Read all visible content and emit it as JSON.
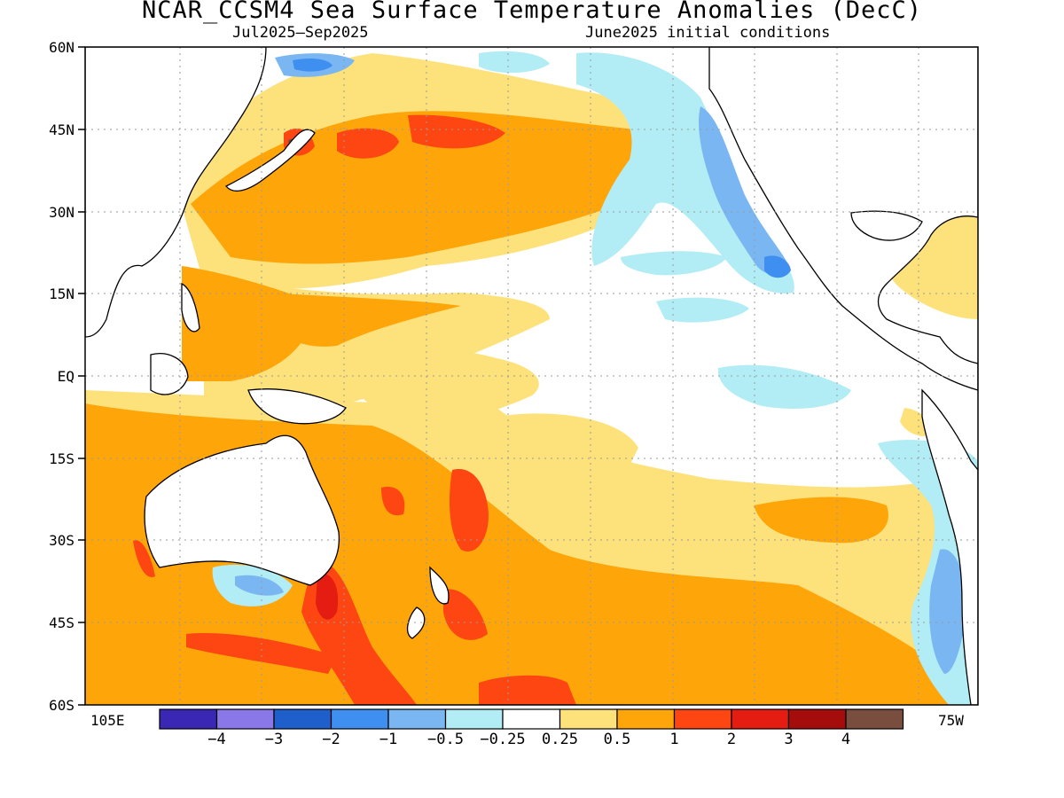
{
  "title": "NCAR_CCSM4 Sea Surface Temperature Anomalies (DecC)",
  "subtitle_left": "Jul2025–Sep2025",
  "subtitle_right": "June2025 initial conditions",
  "lat_labels": [
    "60N",
    "45N",
    "30N",
    "15N",
    "EQ",
    "15S",
    "30S",
    "45S",
    "60S"
  ],
  "lon_labels": {
    "west_edge": "105E",
    "east_edge": "75W"
  },
  "colorbar": {
    "colors": [
      "#3a28b4",
      "#8a78e8",
      "#1e5fcc",
      "#3f8ff0",
      "#7ab7f2",
      "#b2ecf4",
      "#ffffff",
      "#fde27c",
      "#fea50a",
      "#fd4612",
      "#e41c12",
      "#a50d0d",
      "#7a4e3e"
    ],
    "tick_labels": [
      "−4",
      "−3",
      "−2",
      "−1",
      "−0.5",
      "−0.25",
      "0.25",
      "0.5",
      "1",
      "2",
      "3",
      "4"
    ]
  },
  "map_colors": {
    "ocean_neutral": "#ffffff",
    "warm_light": "#fde27c",
    "warm_mid": "#fea50a",
    "warm_strong": "#fd4612",
    "warm_stronger": "#e41c12",
    "warm_extreme": "#7a4e3e",
    "cool_light": "#b2ecf4",
    "cool_mid": "#7ab7f2",
    "cool_strong": "#3f8ff0",
    "coast": "#000000",
    "grid": "#9a9a9a"
  }
}
